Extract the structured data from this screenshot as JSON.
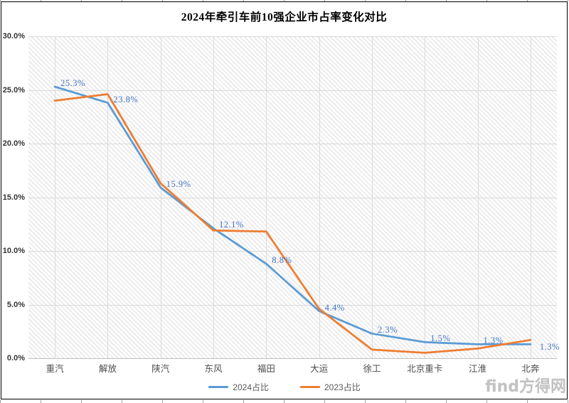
{
  "title": "2024年牵引车前10强企业市占率变化对比",
  "watermark": "find方得网",
  "chart_data": {
    "type": "line",
    "title": "2024年牵引车前10强企业市占率变化对比",
    "categories": [
      "重汽",
      "解放",
      "陕汽",
      "东风",
      "福田",
      "大运",
      "徐工",
      "北京重卡",
      "江淮",
      "北奔"
    ],
    "series": [
      {
        "name": "2024占比",
        "color": "#5B9BD5",
        "values": [
          25.3,
          23.8,
          15.9,
          12.1,
          8.8,
          4.4,
          2.3,
          1.5,
          1.3,
          1.3
        ],
        "show_labels": true
      },
      {
        "name": "2023占比",
        "color": "#ED7D31",
        "values": [
          24.0,
          24.6,
          16.3,
          11.9,
          11.8,
          4.6,
          0.8,
          0.5,
          0.9,
          1.7
        ],
        "show_labels": false
      }
    ],
    "data_labels": [
      "25.3%",
      "23.8%",
      "15.9%",
      "12.1%",
      "8.8%",
      "4.4%",
      "2.3%",
      "1.5%",
      "1.3%",
      "1.3%"
    ],
    "data_label_color": "#4472C4",
    "y_ticks": [
      "30.0%",
      "25.0%",
      "20.0%",
      "15.0%",
      "10.0%",
      "5.0%",
      "0.0%"
    ],
    "ylim": [
      0,
      30
    ],
    "grid": true,
    "plot_background": "diagonal-hatch",
    "legend_position": "bottom"
  }
}
